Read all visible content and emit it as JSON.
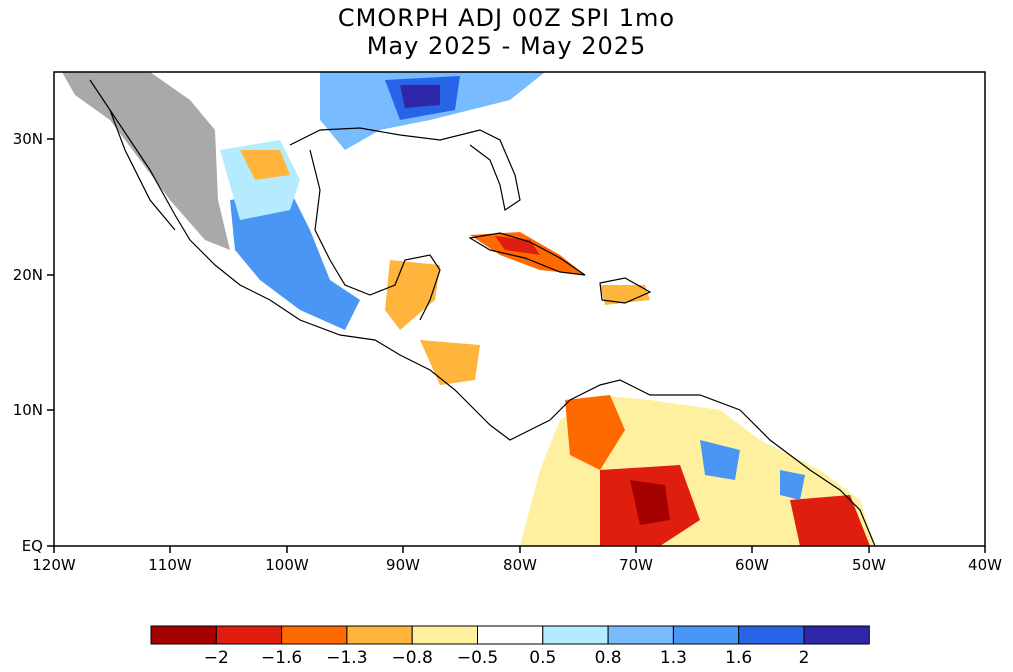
{
  "title": {
    "line1": "CMORPH ADJ 00Z SPI 1mo",
    "line2": "May 2025 - May 2025"
  },
  "axes": {
    "x_ticks": [
      "120W",
      "110W",
      "100W",
      "90W",
      "80W",
      "70W",
      "60W",
      "50W",
      "40W"
    ],
    "y_ticks": [
      "30N",
      "20N",
      "10N",
      "EQ"
    ]
  },
  "colorbar": {
    "colors": [
      "#a50000",
      "#e01e10",
      "#ff6a00",
      "#ffb43c",
      "#fff0a0",
      "#ffffff",
      "#b4ebff",
      "#78bcff",
      "#4a96f5",
      "#2864e8",
      "#2e28a8"
    ],
    "labels": [
      "-2",
      "-1.6",
      "-1.3",
      "-0.8",
      "-0.5",
      "0.5",
      "0.8",
      "1.3",
      "1.6",
      "2"
    ]
  },
  "colors": {
    "missing": "#a9a9a9",
    "wet": "#3c78ff",
    "dry": "#e03010"
  }
}
